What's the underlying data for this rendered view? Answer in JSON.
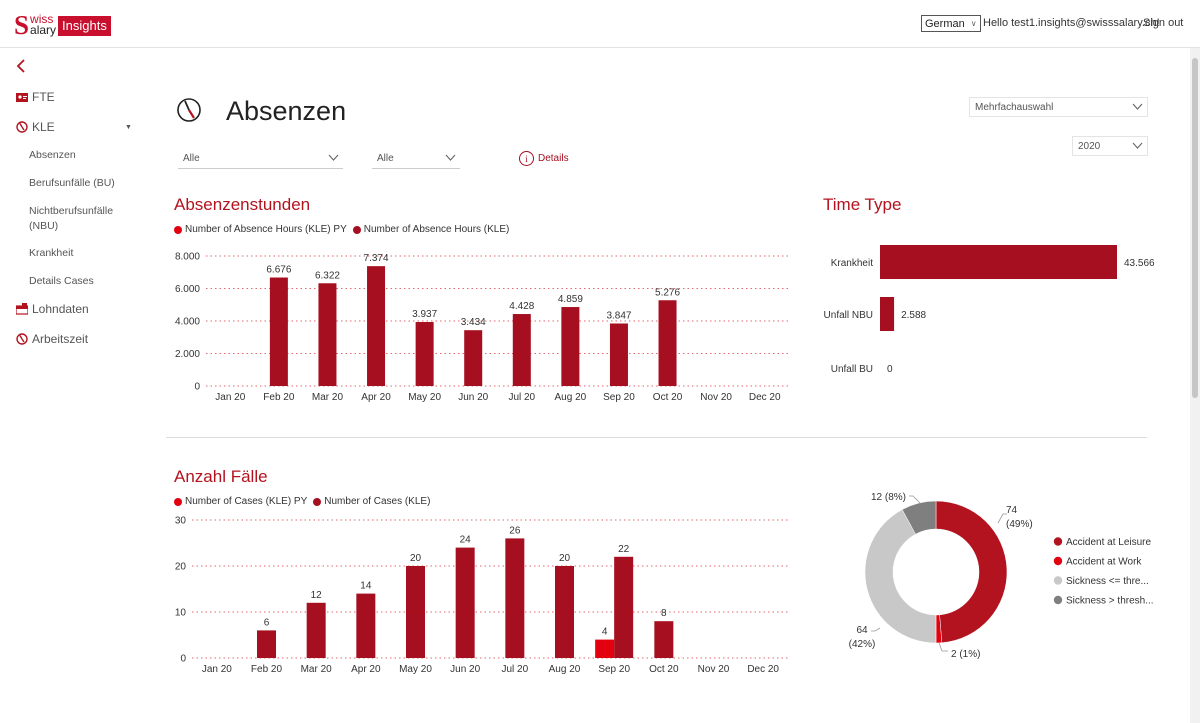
{
  "header": {
    "logo_swiss": "Swiss",
    "logo_s": "S",
    "logo_swiss_rest": "wiss",
    "logo_salary": "alary",
    "logo_insights": "Insights",
    "language": "German",
    "greeting": "Hello test1.insights@swisssalary.ch!",
    "signout": "Sign out"
  },
  "sidebar": {
    "items": [
      {
        "label": "FTE",
        "icon": "id-card-icon"
      },
      {
        "label": "KLE",
        "icon": "clock-icon"
      },
      {
        "label": "Lohndaten",
        "icon": "payroll-icon"
      },
      {
        "label": "Arbeitszeit",
        "icon": "clock-icon"
      }
    ],
    "sub_items": [
      {
        "label": "Absenzen"
      },
      {
        "label": "Berufsunfälle (BU)"
      },
      {
        "label": "Nichtberufsunfälle"
      },
      {
        "label": "(NBU)"
      },
      {
        "label": "Krankheit"
      },
      {
        "label": "Details Cases"
      }
    ]
  },
  "page": {
    "title": "Absenzen",
    "filter1": "Alle",
    "filter2": "Alle",
    "details_label": "Details",
    "multiselect": "Mehrfachauswahl",
    "year": "2020"
  },
  "colors": {
    "accent": "#b3131f",
    "bar_current": "#a50f1f",
    "bar_py": "#e3000f",
    "grey_light": "#c8c8c8",
    "grey_dark": "#7f7f7f"
  },
  "absenzen": {
    "title": "Absenzenstunden",
    "legend_py": "Number of Absence Hours (KLE) PY",
    "legend_cur": "Number of Absence Hours (KLE)"
  },
  "timetype": {
    "title": "Time Type"
  },
  "faelle": {
    "title": "Anzahl Fälle",
    "legend_py": "Number of Cases (KLE) PY",
    "legend_cur": "Number of Cases (KLE)"
  },
  "chart_data": [
    {
      "type": "bar",
      "title": "Absenzenstunden",
      "categories": [
        "Jan 20",
        "Feb 20",
        "Mar 20",
        "Apr 20",
        "May 20",
        "Jun 20",
        "Jul 20",
        "Aug 20",
        "Sep 20",
        "Oct 20",
        "Nov 20",
        "Dec 20"
      ],
      "y_ticks": [
        "0",
        "2.000",
        "4.000",
        "6.000",
        "8.000"
      ],
      "ylim": [
        0,
        8000
      ],
      "series": [
        {
          "name": "Number of Absence Hours (KLE) PY",
          "values": [
            null,
            null,
            null,
            null,
            null,
            null,
            null,
            null,
            null,
            null,
            null,
            null
          ]
        },
        {
          "name": "Number of Absence Hours (KLE)",
          "values": [
            null,
            6676,
            6322,
            7374,
            3937,
            3434,
            4428,
            4859,
            3847,
            5276,
            null,
            null
          ],
          "labels": [
            "",
            "6.676",
            "6.322",
            "7.374",
            "3.937",
            "3.434",
            "4.428",
            "4.859",
            "3.847",
            "5.276",
            "",
            ""
          ]
        }
      ],
      "grid": true
    },
    {
      "type": "bar",
      "orientation": "horizontal",
      "title": "Time Type",
      "categories": [
        "Krankheit",
        "Unfall NBU",
        "Unfall BU"
      ],
      "values": [
        43566,
        2588,
        0
      ],
      "labels": [
        "43.566",
        "2.588",
        "0"
      ]
    },
    {
      "type": "bar",
      "title": "Anzahl Fälle",
      "categories": [
        "Jan 20",
        "Feb 20",
        "Mar 20",
        "Apr 20",
        "May 20",
        "Jun 20",
        "Jul 20",
        "Aug 20",
        "Sep 20",
        "Oct 20",
        "Nov 20",
        "Dec 20"
      ],
      "y_ticks": [
        "0",
        "10",
        "20",
        "30"
      ],
      "ylim": [
        0,
        30
      ],
      "series": [
        {
          "name": "Number of Cases (KLE) PY",
          "values": [
            null,
            null,
            null,
            null,
            null,
            null,
            null,
            null,
            4,
            null,
            null,
            null
          ],
          "labels": [
            "",
            "",
            "",
            "",
            "",
            "",
            "",
            "",
            "4",
            "",
            "",
            ""
          ]
        },
        {
          "name": "Number of Cases (KLE)",
          "values": [
            null,
            6,
            12,
            14,
            20,
            24,
            26,
            20,
            22,
            8,
            null,
            null
          ],
          "labels": [
            "",
            "6",
            "12",
            "14",
            "20",
            "24",
            "26",
            "20",
            "22",
            "8",
            "",
            ""
          ]
        }
      ],
      "grid": true
    },
    {
      "type": "pie",
      "donut": true,
      "slices": [
        {
          "name": "Accident at Leisure",
          "value": 74,
          "label": "74",
          "pct": "(49%)",
          "color": "#b3131f"
        },
        {
          "name": "Accident at Work",
          "value": 2,
          "label": "2 (1%)",
          "color": "#e3000f"
        },
        {
          "name": "Sickness <= thre...",
          "value": 64,
          "label": "64",
          "pct": "(42%)",
          "color": "#c8c8c8"
        },
        {
          "name": "Sickness > thresh...",
          "value": 12,
          "label": "12 (8%)",
          "color": "#7f7f7f"
        }
      ]
    }
  ]
}
